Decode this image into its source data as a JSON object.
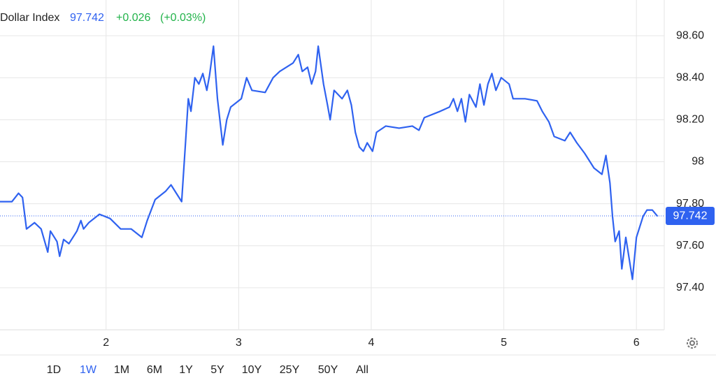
{
  "chart_data": {
    "type": "line",
    "title": "Dollar Index",
    "last_value": 97.742,
    "change": "+0.026",
    "change_pct": "(+0.03%)",
    "ranges": [
      "1D",
      "1W",
      "1M",
      "6M",
      "1Y",
      "5Y",
      "10Y",
      "25Y",
      "50Y",
      "All"
    ],
    "active_range": "1W",
    "xlim": [
      1.2,
      6.21
    ],
    "xticks": [
      2,
      3,
      4,
      5,
      6
    ],
    "ylim": [
      97.2,
      98.77
    ],
    "yticks": [
      {
        "value": 97.4,
        "label": "97.40"
      },
      {
        "value": 97.6,
        "label": "97.60"
      },
      {
        "value": 97.8,
        "label": "97.80"
      },
      98,
      {
        "value": 98.2,
        "label": "98.20"
      },
      {
        "value": 98.4,
        "label": "98.40"
      },
      {
        "value": 98.6,
        "label": "98.60"
      }
    ],
    "grid": true,
    "series": [
      {
        "color": "#2f62f0",
        "x": [
          1.2,
          1.29,
          1.34,
          1.37,
          1.4,
          1.46,
          1.51,
          1.56,
          1.58,
          1.63,
          1.65,
          1.68,
          1.72,
          1.78,
          1.81,
          1.83,
          1.87,
          1.95,
          2.03,
          2.11,
          2.19,
          2.27,
          2.31,
          2.37,
          2.45,
          2.49,
          2.53,
          2.57,
          2.6,
          2.62,
          2.64,
          2.67,
          2.7,
          2.73,
          2.76,
          2.78,
          2.81,
          2.84,
          2.88,
          2.91,
          2.94,
          3.02,
          3.06,
          3.1,
          3.2,
          3.26,
          3.31,
          3.41,
          3.45,
          3.48,
          3.52,
          3.55,
          3.58,
          3.6,
          3.64,
          3.67,
          3.69,
          3.72,
          3.78,
          3.82,
          3.85,
          3.88,
          3.91,
          3.94,
          3.97,
          4.01,
          4.04,
          4.11,
          4.21,
          4.31,
          4.36,
          4.4,
          4.52,
          4.59,
          4.62,
          4.65,
          4.68,
          4.71,
          4.74,
          4.79,
          4.82,
          4.85,
          4.88,
          4.91,
          4.94,
          4.98,
          5.04,
          5.07,
          5.16,
          5.25,
          5.29,
          5.34,
          5.38,
          5.46,
          5.5,
          5.55,
          5.61,
          5.68,
          5.74,
          5.77,
          5.8,
          5.82,
          5.84,
          5.87,
          5.89,
          5.92,
          5.97,
          6.0,
          6.05,
          6.08,
          6.12,
          6.16
        ],
        "values": [
          97.81,
          97.81,
          97.85,
          97.83,
          97.68,
          97.71,
          97.68,
          97.57,
          97.67,
          97.62,
          97.55,
          97.63,
          97.61,
          97.67,
          97.72,
          97.68,
          97.71,
          97.75,
          97.73,
          97.68,
          97.68,
          97.64,
          97.72,
          97.82,
          97.86,
          97.89,
          97.85,
          97.81,
          98.1,
          98.3,
          98.24,
          98.4,
          98.37,
          98.42,
          98.34,
          98.41,
          98.55,
          98.3,
          98.08,
          98.2,
          98.26,
          98.3,
          98.4,
          98.34,
          98.33,
          98.4,
          98.43,
          98.47,
          98.51,
          98.43,
          98.45,
          98.37,
          98.43,
          98.55,
          98.37,
          98.27,
          98.2,
          98.34,
          98.3,
          98.34,
          98.27,
          98.14,
          98.07,
          98.05,
          98.09,
          98.05,
          98.14,
          98.17,
          98.16,
          98.17,
          98.15,
          98.21,
          98.24,
          98.26,
          98.3,
          98.24,
          98.3,
          98.19,
          98.32,
          98.26,
          98.37,
          98.27,
          98.37,
          98.42,
          98.34,
          98.4,
          98.37,
          98.3,
          98.3,
          98.29,
          98.24,
          98.19,
          98.12,
          98.1,
          98.14,
          98.09,
          98.04,
          97.97,
          97.94,
          98.03,
          97.9,
          97.74,
          97.62,
          97.67,
          97.49,
          97.64,
          97.44,
          97.64,
          97.74,
          97.77,
          97.77,
          97.74
        ]
      }
    ]
  }
}
